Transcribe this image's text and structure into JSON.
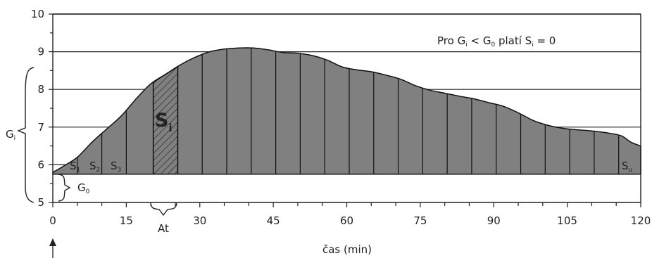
{
  "chart_data": {
    "type": "area",
    "x": [
      0,
      2,
      5,
      8,
      11,
      14,
      17,
      20,
      23,
      26,
      29,
      32,
      35,
      38,
      41,
      44,
      47,
      50,
      53,
      56,
      59,
      62,
      65,
      68,
      71,
      74,
      77,
      80,
      83,
      86,
      89,
      92,
      95,
      98,
      101,
      104,
      107,
      110,
      113,
      116,
      118,
      120
    ],
    "y": [
      5.8,
      5.95,
      6.2,
      6.6,
      6.95,
      7.3,
      7.75,
      8.15,
      8.4,
      8.65,
      8.85,
      9.0,
      9.07,
      9.1,
      9.1,
      9.05,
      8.98,
      8.96,
      8.9,
      8.78,
      8.6,
      8.52,
      8.47,
      8.38,
      8.27,
      8.1,
      7.98,
      7.9,
      7.82,
      7.75,
      7.65,
      7.55,
      7.38,
      7.18,
      7.05,
      6.97,
      6.93,
      6.9,
      6.85,
      6.77,
      6.6,
      6.5
    ],
    "baseline_G0": 5.75,
    "hatched_interval": [
      20.5,
      25.5
    ],
    "ylim": [
      5,
      10
    ],
    "xlim": [
      0,
      120
    ],
    "xticks": [
      0,
      15,
      30,
      45,
      60,
      75,
      90,
      105,
      120
    ],
    "yticks": [
      5,
      6,
      7,
      8,
      9,
      10
    ],
    "xlabel": "čas (min)",
    "grid": "horizontal",
    "fill_color": "#808080"
  },
  "labels": {
    "gi_main": "G",
    "gi_sub": "i",
    "g0_main": "G",
    "g0_sub": "0",
    "at": "At",
    "si_main": "S",
    "si_sub": "i",
    "s1_main": "S",
    "s1_sub": "1",
    "s2_main": "S",
    "s2_sub": "2",
    "s3_main": "S",
    "s3_sub": "3",
    "su_main": "S",
    "su_sub": "u",
    "rule": {
      "p1": "Pro G",
      "p1_sub": "i",
      "p2": " < G",
      "p2_sub": "0",
      "p3": " platí S",
      "p3_sub": "i",
      "p4": " = 0"
    }
  }
}
